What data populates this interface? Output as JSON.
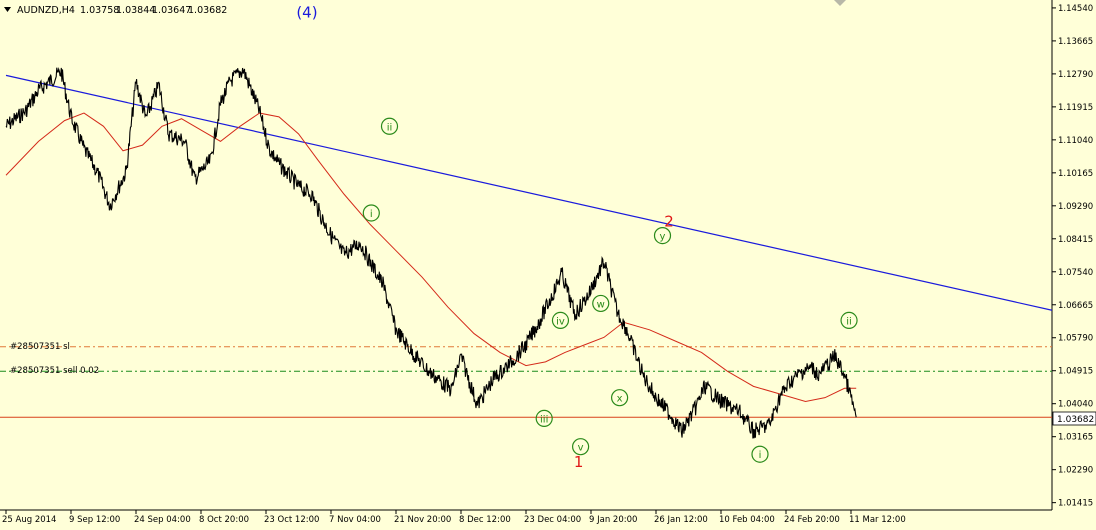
{
  "header": {
    "symbol": "AUDNZD,H4",
    "open": "1.03758",
    "high": "1.03844",
    "low": "1.03647",
    "close": "1.03682"
  },
  "colors": {
    "background": "#ffffd8",
    "price": "#000000",
    "moving_average": "#d42a1a",
    "trendline": "#1a1adc",
    "sl_line": "#e07838",
    "sell_line": "#1c8c1c",
    "price_line": "#d8401a",
    "wave_green": "#2a8a1a",
    "wave_red": "#e01818",
    "wave_blue": "#1a1adc"
  },
  "orders": {
    "sl_label": "#28507351 sl",
    "sell_label": "#28507351 sell 0.02"
  },
  "chart_data": {
    "type": "line",
    "title": "AUDNZD,H4",
    "xlabel": "",
    "ylabel": "",
    "ylim": [
      1.0122,
      1.1475
    ],
    "grid": false,
    "y_ticks": [
      "1.14540",
      "1.13665",
      "1.12790",
      "1.11915",
      "1.11040",
      "1.10165",
      "1.09290",
      "1.08415",
      "1.07540",
      "1.06665",
      "1.05790",
      "1.04915",
      "1.04040",
      "1.03165",
      "1.02290",
      "1.01415"
    ],
    "x_ticks": [
      "25 Aug 2014",
      "9 Sep 12:00",
      "24 Sep 04:00",
      "8 Oct 20:00",
      "23 Oct 12:00",
      "7 Nov 04:00",
      "21 Nov 20:00",
      "8 Dec 12:00",
      "23 Dec 04:00",
      "9 Jan 20:00",
      "26 Jan 12:00",
      "10 Feb 04:00",
      "24 Feb 20:00",
      "11 Mar 12:00"
    ],
    "current_price": "1.03682",
    "sl_level": 1.0555,
    "sell_level": 1.049,
    "trendline": {
      "from": [
        0,
        1.1275
      ],
      "to": [
        13.3,
        1.076
      ]
    },
    "series": [
      {
        "name": "price",
        "x": [
          0,
          0.3,
          0.5,
          0.85,
          1.0,
          1.2,
          1.4,
          1.6,
          1.85,
          2.0,
          2.15,
          2.35,
          2.5,
          2.75,
          2.9,
          3.15,
          3.3,
          3.45,
          3.65,
          3.9,
          4.05,
          4.2,
          4.5,
          4.7,
          4.85,
          5.0,
          5.2,
          5.45,
          5.6,
          5.8,
          6.0,
          6.25,
          6.5,
          6.85,
          7.0,
          7.25,
          7.5,
          7.75,
          8.0,
          8.2,
          8.4,
          8.55,
          8.75,
          8.95,
          9.2,
          9.4,
          9.55,
          9.8,
          10.0,
          10.2,
          10.4,
          10.6,
          10.75,
          11.0,
          11.3,
          11.5,
          11.75,
          11.9,
          12.05,
          12.25,
          12.4,
          12.5,
          12.6,
          12.75,
          12.9,
          13.0,
          13.08
        ],
        "y": [
          1.114,
          1.118,
          1.1235,
          1.1285,
          1.1165,
          1.108,
          1.102,
          1.093,
          1.102,
          1.126,
          1.116,
          1.125,
          1.112,
          1.11,
          1.1,
          1.105,
          1.12,
          1.126,
          1.129,
          1.118,
          1.108,
          1.104,
          1.098,
          1.096,
          1.09,
          1.085,
          1.08,
          1.083,
          1.078,
          1.072,
          1.06,
          1.054,
          1.049,
          1.044,
          1.053,
          1.04,
          1.047,
          1.051,
          1.056,
          1.062,
          1.069,
          1.075,
          1.064,
          1.069,
          1.078,
          1.065,
          1.06,
          1.048,
          1.042,
          1.038,
          1.033,
          1.039,
          1.045,
          1.041,
          1.038,
          1.033,
          1.035,
          1.042,
          1.046,
          1.049,
          1.05,
          1.048,
          1.05,
          1.053,
          1.048,
          1.042,
          1.0368
        ]
      },
      {
        "name": "moving_average",
        "x": [
          0,
          0.5,
          0.9,
          1.2,
          1.5,
          1.8,
          2.1,
          2.4,
          2.7,
          3.0,
          3.3,
          3.6,
          3.9,
          4.2,
          4.5,
          4.8,
          5.2,
          5.6,
          6.0,
          6.4,
          6.8,
          7.2,
          7.6,
          8.0,
          8.3,
          8.6,
          8.9,
          9.2,
          9.5,
          9.9,
          10.3,
          10.7,
          11.1,
          11.5,
          11.9,
          12.3,
          12.6,
          12.9,
          13.08
        ],
        "y": [
          1.101,
          1.11,
          1.1155,
          1.1175,
          1.114,
          1.1075,
          1.109,
          1.114,
          1.116,
          1.113,
          1.11,
          1.114,
          1.1175,
          1.1165,
          1.112,
          1.105,
          1.096,
          1.088,
          1.081,
          1.074,
          1.066,
          1.059,
          1.054,
          1.0505,
          1.0515,
          1.054,
          1.056,
          1.058,
          1.062,
          1.06,
          1.057,
          1.054,
          1.049,
          1.045,
          1.043,
          1.041,
          1.042,
          1.0445,
          1.0445
        ]
      }
    ],
    "wave_labels": [
      {
        "text": "(4)",
        "x": 4.63,
        "y": 1.1442,
        "style": "plain",
        "color": "blue"
      },
      {
        "text": "ii",
        "x": 5.9,
        "y": 1.114,
        "style": "circle",
        "color": "green"
      },
      {
        "text": "i",
        "x": 5.62,
        "y": 1.091,
        "style": "circle",
        "color": "green"
      },
      {
        "text": "2",
        "x": 10.2,
        "y": 1.0888,
        "style": "plain",
        "color": "red"
      },
      {
        "text": "y",
        "x": 10.1,
        "y": 1.085,
        "style": "circle",
        "color": "green"
      },
      {
        "text": "w",
        "x": 9.15,
        "y": 1.067,
        "style": "circle",
        "color": "green"
      },
      {
        "text": "iv",
        "x": 8.53,
        "y": 1.0625,
        "style": "circle",
        "color": "green"
      },
      {
        "text": "x",
        "x": 9.44,
        "y": 1.042,
        "style": "circle",
        "color": "green"
      },
      {
        "text": "iii",
        "x": 8.28,
        "y": 1.0365,
        "style": "circle",
        "color": "green"
      },
      {
        "text": "v",
        "x": 8.84,
        "y": 1.029,
        "style": "circle",
        "color": "green"
      },
      {
        "text": "1",
        "x": 8.81,
        "y": 1.025,
        "style": "plain",
        "color": "red"
      },
      {
        "text": "ii",
        "x": 12.97,
        "y": 1.0625,
        "style": "circle",
        "color": "green"
      },
      {
        "text": "i",
        "x": 11.6,
        "y": 1.027,
        "style": "circle",
        "color": "green"
      }
    ]
  }
}
